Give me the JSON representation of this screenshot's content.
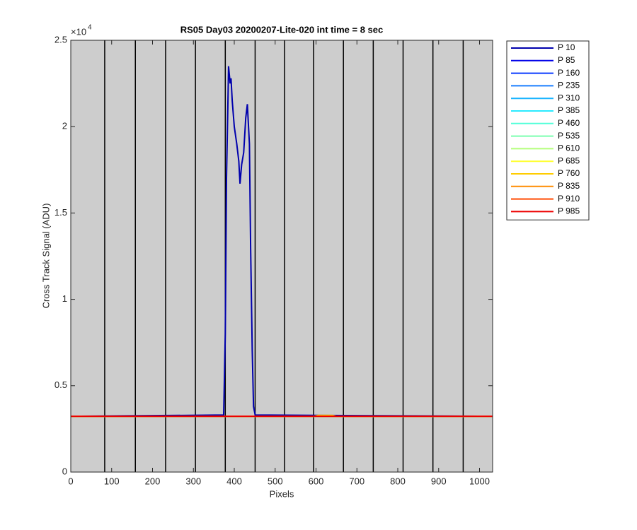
{
  "chart_data": {
    "type": "line",
    "title": "RS05 Day03 20200207-Lite-020 int time = 8 sec",
    "x_label": "Pixels",
    "y_label": "Cross Track Signal (ADU)",
    "y_multiplier": "×10",
    "y_multiplier_exponent": "4",
    "xlim": [
      0,
      1032
    ],
    "ylim": [
      0,
      25000
    ],
    "xticks": [
      0,
      100,
      200,
      300,
      400,
      500,
      600,
      700,
      800,
      900,
      1000
    ],
    "yticks": [
      0,
      {
        "value": 5000,
        "label": "0.5"
      },
      {
        "value": 10000,
        "label": "1"
      },
      {
        "value": 15000,
        "label": "1.5"
      },
      {
        "value": 20000,
        "label": "2"
      },
      {
        "value": 25000,
        "label": "2.5"
      }
    ],
    "vertical_lines": [
      83,
      158,
      232,
      305,
      378,
      451,
      523,
      594,
      667,
      740,
      813,
      886,
      960
    ],
    "vertical_line_color": "#000000",
    "background": "#cdcdcd",
    "legend": "outside-right",
    "series": [
      {
        "name": "P 10",
        "color": "#0000ad",
        "x": [
          1,
          374,
          378,
          381,
          385,
          386,
          390,
          392,
          395,
          400,
          406,
          411,
          414,
          418,
          423,
          428,
          432,
          433,
          437,
          440,
          444,
          447,
          451,
          1032
        ],
        "values": [
          3230,
          3300,
          8000,
          17000,
          22000,
          23500,
          22500,
          22800,
          21500,
          20000,
          19000,
          18000,
          16700,
          17800,
          18500,
          20500,
          21300,
          20800,
          19000,
          13000,
          7000,
          3800,
          3300,
          3230
        ]
      },
      {
        "name": "P 85",
        "color": "#0000e8",
        "x": [
          1,
          1032
        ],
        "values": [
          3230,
          3230
        ]
      },
      {
        "name": "P 160",
        "color": "#0a3bff",
        "x": [
          1,
          1032
        ],
        "values": [
          3230,
          3230
        ]
      },
      {
        "name": "P 235",
        "color": "#1a7fff",
        "x": [
          1,
          1032
        ],
        "values": [
          3230,
          3230
        ]
      },
      {
        "name": "P 310",
        "color": "#18b4ff",
        "x": [
          1,
          1032
        ],
        "values": [
          3230,
          3230
        ]
      },
      {
        "name": "P 385",
        "color": "#2aeaff",
        "x": [
          1,
          1032
        ],
        "values": [
          3230,
          3230
        ]
      },
      {
        "name": "P 460",
        "color": "#52ffd9",
        "x": [
          1,
          1032
        ],
        "values": [
          3230,
          3230
        ]
      },
      {
        "name": "P 535",
        "color": "#7bffaf",
        "x": [
          1,
          1032
        ],
        "values": [
          3230,
          3230
        ]
      },
      {
        "name": "P 610",
        "color": "#b4ff7b",
        "x": [
          1,
          1032
        ],
        "values": [
          3230,
          3230
        ]
      },
      {
        "name": "P 685",
        "color": "#ffff30",
        "x": [
          1,
          1032
        ],
        "values": [
          3230,
          3230
        ]
      },
      {
        "name": "P 760",
        "color": "#ffcc00",
        "x": [
          1,
          595,
          605,
          640,
          650,
          1032
        ],
        "values": [
          3230,
          3230,
          3280,
          3280,
          3230,
          3230
        ]
      },
      {
        "name": "P 835",
        "color": "#ff8c00",
        "x": [
          1,
          1032
        ],
        "values": [
          3230,
          3230
        ]
      },
      {
        "name": "P 910",
        "color": "#ff4a00",
        "x": [
          1,
          1032
        ],
        "values": [
          3230,
          3230
        ]
      },
      {
        "name": "P 985",
        "color": "#ee0000",
        "x": [
          1,
          1032
        ],
        "values": [
          3230,
          3230
        ]
      }
    ]
  }
}
